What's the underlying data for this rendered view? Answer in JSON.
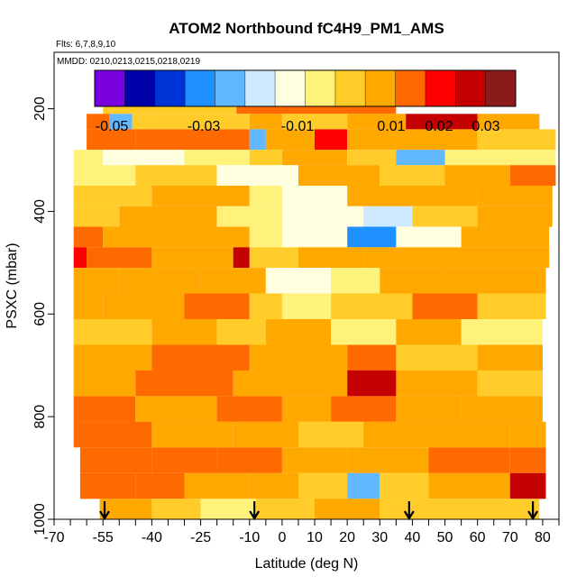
{
  "chart_data": {
    "type": "heatmap",
    "title": "ATOM2 Northbound fC4H9_PM1_AMS",
    "flights_label": "Flts: 6,7,8,9,10",
    "dates_label": "MMDD: 0210,0213,0215,0218,0219",
    "xlabel": "Latitude (deg N)",
    "ylabel": "PSXC (mbar)",
    "xlim": [
      -70,
      85
    ],
    "ylim": [
      1000,
      90
    ],
    "x_tick_labels": [
      "-70",
      "-55",
      "-40",
      "-25",
      "-10",
      "0",
      "10",
      "20",
      "30",
      "40",
      "50",
      "60",
      "70",
      "80"
    ],
    "x_tick_values": [
      -70,
      -55,
      -40,
      -25,
      -10,
      0,
      10,
      20,
      30,
      40,
      50,
      60,
      70,
      80
    ],
    "x_minor_ticks": [
      -65,
      -60,
      -50,
      -45,
      -35,
      -30,
      -20,
      -15,
      -5,
      5,
      15,
      25,
      35,
      45,
      55,
      65,
      75,
      85
    ],
    "y_tick_values": [
      200,
      400,
      600,
      800,
      1000
    ],
    "y_tick_labels": [
      "200",
      "400",
      "600",
      "800",
      "1000"
    ],
    "colorbar": {
      "tick_labels": [
        "-0.05",
        "-0.03",
        "-0.01",
        "0.01",
        "0.02",
        "0.03"
      ],
      "tick_values": [
        -0.05,
        -0.03,
        -0.01,
        0.01,
        0.02,
        0.03
      ],
      "boundaries": [
        -0.06,
        -0.05,
        -0.04,
        -0.03,
        -0.02,
        -0.01,
        0,
        0.01,
        0.02,
        0.03,
        0.04
      ],
      "colors": [
        "#7a00e0",
        "#0000a8",
        "#0033d6",
        "#1e90ff",
        "#62b8ff",
        "#cfeaff",
        "#ffffe0",
        "#fff27a",
        "#ffcc2a",
        "#ffa800",
        "#ff6a00",
        "#ff0000",
        "#c40000",
        "#8b1a1a"
      ]
    },
    "flight_marker_latitudes": [
      -54.5,
      -8.5,
      39,
      77
    ],
    "layers": [
      {
        "p": [
          170,
          210
        ],
        "x": [
          -55,
          75
        ],
        "segs": [
          [
            -55,
            -14,
            0.0
          ],
          [
            -14,
            35,
            0.012
          ]
        ]
      },
      {
        "p": [
          210,
          240
        ],
        "x": [
          -60,
          79
        ],
        "segs": [
          [
            -60,
            -53,
            0.012
          ],
          [
            -53,
            -46,
            -0.028
          ],
          [
            -46,
            -40,
            0.0
          ],
          [
            -40,
            -10,
            0.003
          ],
          [
            -10,
            0,
            0.008
          ],
          [
            0,
            20,
            0.004
          ],
          [
            20,
            38,
            0.006
          ],
          [
            38,
            60,
            0.028
          ],
          [
            60,
            79,
            0.008
          ]
        ]
      },
      {
        "p": [
          240,
          280
        ],
        "x": [
          -60,
          84
        ],
        "segs": [
          [
            -60,
            -45,
            0.012
          ],
          [
            -45,
            -10,
            0.018
          ],
          [
            -10,
            -5,
            -0.03
          ],
          [
            -5,
            10,
            0.01
          ],
          [
            10,
            20,
            0.02
          ],
          [
            20,
            40,
            0.011
          ],
          [
            40,
            60,
            0.005
          ],
          [
            60,
            84,
            0.003
          ]
        ]
      },
      {
        "p": [
          280,
          310
        ],
        "x": [
          -64,
          84
        ],
        "segs": [
          [
            -64,
            -55,
            -0.005
          ],
          [
            -55,
            -30,
            -0.012
          ],
          [
            -30,
            -10,
            -0.007
          ],
          [
            -10,
            0,
            0.003
          ],
          [
            0,
            20,
            0.008
          ],
          [
            20,
            35,
            0.004
          ],
          [
            35,
            50,
            -0.025
          ],
          [
            50,
            84,
            -0.003
          ]
        ]
      },
      {
        "p": [
          310,
          350
        ],
        "x": [
          -64,
          84
        ],
        "segs": [
          [
            -64,
            -45,
            -0.006
          ],
          [
            -45,
            -20,
            0.002
          ],
          [
            -20,
            5,
            -0.01
          ],
          [
            5,
            30,
            0.005
          ],
          [
            30,
            50,
            0.003
          ],
          [
            50,
            70,
            0.01
          ],
          [
            70,
            84,
            0.018
          ]
        ]
      },
      {
        "p": [
          350,
          390
        ],
        "x": [
          -64,
          83
        ],
        "segs": [
          [
            -64,
            -40,
            0.004
          ],
          [
            -40,
            -10,
            0.009
          ],
          [
            -10,
            0,
            -0.006
          ],
          [
            0,
            20,
            -0.015
          ],
          [
            20,
            40,
            0.005
          ],
          [
            40,
            60,
            0.007
          ],
          [
            60,
            83,
            0.009
          ]
        ]
      },
      {
        "p": [
          390,
          430
        ],
        "x": [
          -64,
          83
        ],
        "segs": [
          [
            -64,
            -50,
            0.003
          ],
          [
            -50,
            -20,
            0.007
          ],
          [
            -20,
            0,
            -0.004
          ],
          [
            0,
            15,
            -0.012
          ],
          [
            15,
            25,
            -0.016
          ],
          [
            25,
            40,
            -0.022
          ],
          [
            40,
            60,
            0.004
          ],
          [
            60,
            83,
            0.008
          ]
        ]
      },
      {
        "p": [
          430,
          470
        ],
        "x": [
          -64,
          82
        ],
        "segs": [
          [
            -64,
            -55,
            0.016
          ],
          [
            -55,
            -30,
            0.01
          ],
          [
            -30,
            -10,
            0.007
          ],
          [
            -10,
            0,
            -0.008
          ],
          [
            0,
            20,
            -0.013
          ],
          [
            20,
            35,
            -0.035
          ],
          [
            35,
            55,
            -0.01
          ],
          [
            55,
            82,
            0.005
          ]
        ]
      },
      {
        "p": [
          470,
          510
        ],
        "x": [
          -64,
          82
        ],
        "segs": [
          [
            -64,
            -60,
            0.024
          ],
          [
            -60,
            -40,
            0.012
          ],
          [
            -40,
            -15,
            0.006
          ],
          [
            -15,
            -10,
            0.027
          ],
          [
            -10,
            5,
            0.003
          ],
          [
            5,
            25,
            0.007
          ],
          [
            25,
            45,
            0.005
          ],
          [
            45,
            82,
            0.009
          ]
        ]
      },
      {
        "p": [
          510,
          560
        ],
        "x": [
          -64,
          81
        ],
        "segs": [
          [
            -64,
            -50,
            0.005
          ],
          [
            -50,
            -25,
            0.01
          ],
          [
            -25,
            -5,
            0.006
          ],
          [
            -5,
            15,
            -0.01
          ],
          [
            15,
            30,
            -0.005
          ],
          [
            30,
            50,
            0.007
          ],
          [
            50,
            81,
            0.006
          ]
        ]
      },
      {
        "p": [
          560,
          610
        ],
        "x": [
          -64,
          81
        ],
        "segs": [
          [
            -64,
            -55,
            0.007
          ],
          [
            -55,
            -30,
            0.005
          ],
          [
            -30,
            -10,
            0.014
          ],
          [
            -10,
            0,
            0.003
          ],
          [
            0,
            15,
            -0.006
          ],
          [
            15,
            40,
            0.002
          ],
          [
            40,
            60,
            0.018
          ],
          [
            60,
            81,
            0.004
          ]
        ]
      },
      {
        "p": [
          610,
          660
        ],
        "x": [
          -64,
          80
        ],
        "segs": [
          [
            -64,
            -40,
            0.003
          ],
          [
            -40,
            -20,
            0.009
          ],
          [
            -20,
            -5,
            0.004
          ],
          [
            -5,
            15,
            0.007
          ],
          [
            15,
            35,
            -0.007
          ],
          [
            35,
            55,
            0.005
          ],
          [
            55,
            80,
            -0.004
          ]
        ]
      },
      {
        "p": [
          660,
          710
        ],
        "x": [
          -64,
          80
        ],
        "segs": [
          [
            -64,
            -40,
            0.009
          ],
          [
            -40,
            -10,
            0.012
          ],
          [
            -10,
            10,
            0.006
          ],
          [
            10,
            20,
            0.008
          ],
          [
            20,
            35,
            0.012
          ],
          [
            35,
            60,
            0.004
          ],
          [
            60,
            80,
            0.006
          ]
        ]
      },
      {
        "p": [
          710,
          760
        ],
        "x": [
          -64,
          80
        ],
        "segs": [
          [
            -64,
            -45,
            0.009
          ],
          [
            -45,
            -15,
            0.013
          ],
          [
            -15,
            5,
            0.007
          ],
          [
            5,
            20,
            0.005
          ],
          [
            20,
            35,
            0.028
          ],
          [
            35,
            60,
            0.006
          ],
          [
            60,
            80,
            0.004
          ]
        ]
      },
      {
        "p": [
          760,
          810
        ],
        "x": [
          -64,
          80
        ],
        "segs": [
          [
            -64,
            -45,
            0.012
          ],
          [
            -45,
            -20,
            0.009
          ],
          [
            -20,
            0,
            0.012
          ],
          [
            0,
            15,
            0.006
          ],
          [
            15,
            35,
            0.015
          ],
          [
            35,
            55,
            0.008
          ],
          [
            55,
            80,
            0.005
          ]
        ]
      },
      {
        "p": [
          810,
          860
        ],
        "x": [
          -64,
          81
        ],
        "segs": [
          [
            -64,
            -40,
            0.013
          ],
          [
            -40,
            -15,
            0.011
          ],
          [
            -15,
            5,
            0.009
          ],
          [
            5,
            25,
            0.004
          ],
          [
            25,
            45,
            0.011
          ],
          [
            45,
            70,
            0.008
          ],
          [
            70,
            81,
            0.006
          ]
        ]
      },
      {
        "p": [
          860,
          910
        ],
        "x": [
          -62,
          81
        ],
        "segs": [
          [
            -62,
            -40,
            0.016
          ],
          [
            -40,
            -20,
            0.012
          ],
          [
            -20,
            0,
            0.013
          ],
          [
            0,
            20,
            0.005
          ],
          [
            20,
            45,
            0.011
          ],
          [
            45,
            70,
            0.013
          ],
          [
            70,
            81,
            0.016
          ]
        ]
      },
      {
        "p": [
          910,
          960
        ],
        "x": [
          -62,
          81
        ],
        "segs": [
          [
            -62,
            -45,
            0.016
          ],
          [
            -45,
            -30,
            0.012
          ],
          [
            -30,
            -10,
            0.005
          ],
          [
            -10,
            5,
            0.008
          ],
          [
            5,
            20,
            0.002
          ],
          [
            20,
            30,
            -0.025
          ],
          [
            30,
            45,
            0.004
          ],
          [
            45,
            70,
            0.006
          ],
          [
            70,
            81,
            0.028
          ]
        ]
      },
      {
        "p": [
          960,
          1000
        ],
        "x": [
          -56,
          79
        ],
        "segs": [
          [
            -56,
            -40,
            0.008
          ],
          [
            -40,
            -25,
            0.001
          ],
          [
            -25,
            -8,
            -0.007
          ],
          [
            -8,
            10,
            0.003
          ],
          [
            10,
            30,
            0.005
          ],
          [
            30,
            50,
            0.002
          ],
          [
            50,
            79,
            0.003
          ]
        ]
      }
    ]
  }
}
